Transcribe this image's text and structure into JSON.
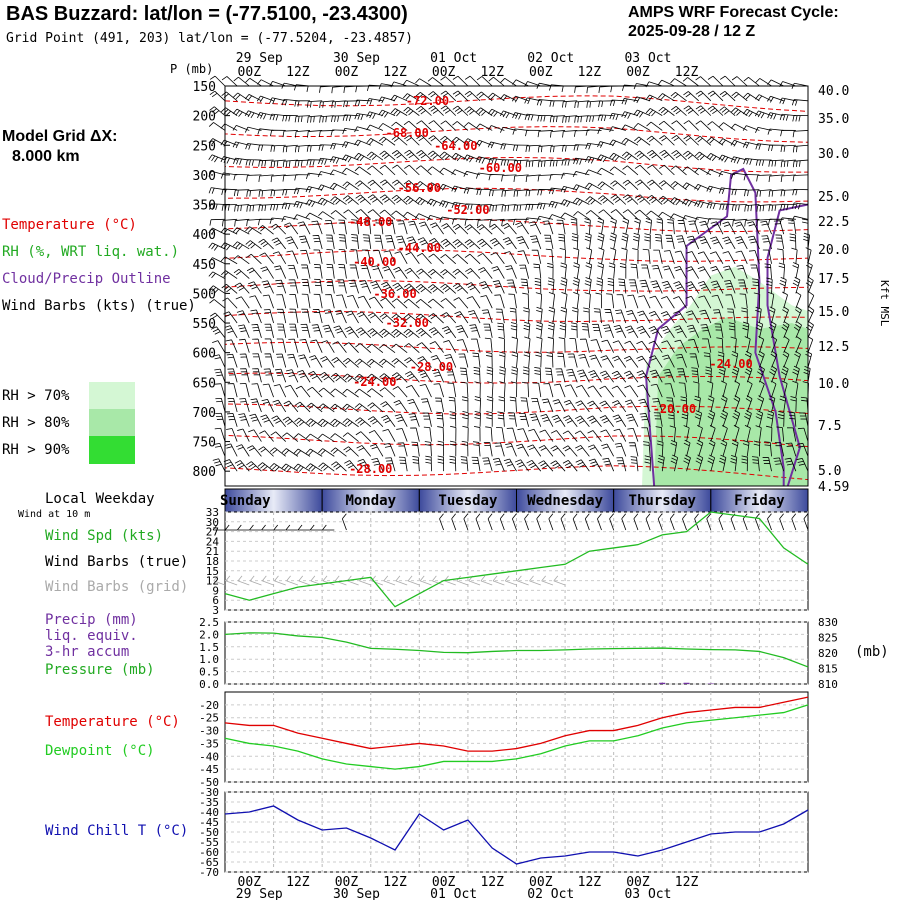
{
  "header": {
    "title": "BAS Buzzard:  lat/lon = (-77.5100, -23.4300)",
    "subtitle": "Grid Point (491, 203) lat/lon = (-77.5204, -23.4857)",
    "cycle_line1": "AMPS WRF Forecast Cycle:",
    "cycle_line2": "2025-09-28 / 12  Z"
  },
  "model_grid": {
    "label": "Model Grid ΔX:",
    "value": "8.000 km"
  },
  "time_axis": {
    "ticks": [
      "00Z",
      "12Z",
      "00Z",
      "12Z",
      "00Z",
      "12Z",
      "00Z",
      "12Z",
      "00Z",
      "12Z"
    ],
    "dates_top": [
      "29 Sep",
      "30 Sep",
      "01 Oct",
      "02 Oct",
      "03 Oct"
    ],
    "dates_bottom": [
      "29 Sep",
      "30 Sep",
      "01 Oct",
      "02 Oct",
      "03 Oct"
    ]
  },
  "colors": {
    "temperature": "#e00000",
    "rh": "#22bb22",
    "cloud_outline": "#7030a0",
    "wind": "#000000",
    "wind_grid": "#aaaaaa",
    "pressure": "#22bb22",
    "dewpoint": "#22cc22",
    "wind_chill": "#1010b0",
    "weekday_bar": "#4a5aa8",
    "rh70": "#d4f7d4",
    "rh80": "#a8e8a8",
    "rh90": "#33dd33"
  },
  "sounding": {
    "pressure_unit": "P (mb)",
    "pressure_levels": [
      "150",
      "200",
      "250",
      "300",
      "350",
      "400",
      "450",
      "500",
      "550",
      "600",
      "650",
      "700",
      "750",
      "800"
    ],
    "height_labels": [
      "40.0",
      "35.0",
      "30.0",
      "25.0",
      "22.5",
      "20.0",
      "17.5",
      "15.0",
      "12.5",
      "10.0",
      "7.5",
      "5.0",
      "4.59"
    ],
    "height_unit": "Kft MSL",
    "legend": [
      {
        "text": "Temperature (°C)",
        "color": "#e00000"
      },
      {
        "text": "RH (%, WRT liq. wat.)",
        "color": "#22aa22"
      },
      {
        "text": "Cloud/Precip Outline",
        "color": "#7030a0"
      },
      {
        "text": "Wind Barbs (kts) (true)",
        "color": "#000000"
      }
    ],
    "rh_legend": [
      {
        "text": "RH > 70%",
        "color": "#d4f7d4"
      },
      {
        "text": "RH > 80%",
        "color": "#a8e8a8"
      },
      {
        "text": "RH > 90%",
        "color": "#33dd33"
      }
    ],
    "isotherm_labels": [
      "-72.00",
      "-68.00",
      "-64.00",
      "-60.00",
      "-56.00",
      "-52.00",
      "-48.00",
      "-44.00",
      "-40.00",
      "-36.00",
      "-32.00",
      "-28.00",
      "-24.00",
      "-24.00",
      "-20.00",
      "-28.00"
    ]
  },
  "weekday": {
    "label": "Local Weekday",
    "days": [
      "Sunday",
      "Monday",
      "Tuesday",
      "Wednesday",
      "Thursday",
      "Friday"
    ]
  },
  "panels": {
    "wind": {
      "subtitle": "Wind at 10 m",
      "legend": [
        {
          "text": "Wind Spd (kts)",
          "color": "#22aa22"
        },
        {
          "text": "Wind Barbs (true)",
          "color": "#000000"
        },
        {
          "text": "Wind Barbs (grid)",
          "color": "#aaaaaa"
        }
      ],
      "yticks": [
        "33",
        "30",
        "27",
        "24",
        "21",
        "18",
        "15",
        "12",
        "9",
        "6",
        "3"
      ]
    },
    "precip": {
      "legend": [
        {
          "text": "Precip (mm)",
          "color": "#7030a0"
        },
        {
          "text": "liq. equiv.",
          "color": "#7030a0"
        },
        {
          "text": "3-hr accum",
          "color": "#7030a0"
        },
        {
          "text": "Pressure (mb)",
          "color": "#22aa22"
        }
      ],
      "yticks_left": [
        "2.5",
        "2.0",
        "1.5",
        "1.0",
        "0.5",
        "0.0"
      ],
      "yticks_right": [
        "830",
        "825",
        "820",
        "815",
        "810"
      ],
      "unit_right": "(mb)"
    },
    "temp": {
      "legend": [
        {
          "text": "Temperature (°C)",
          "color": "#e00000"
        },
        {
          "text": "Dewpoint (°C)",
          "color": "#22cc22"
        }
      ],
      "yticks": [
        "-20",
        "-25",
        "-30",
        "-35",
        "-40",
        "-45",
        "-50"
      ]
    },
    "chill": {
      "legend": [
        {
          "text": "Wind Chill T (°C)",
          "color": "#1010b0"
        }
      ],
      "yticks": [
        "-30",
        "-35",
        "-40",
        "-45",
        "-50",
        "-55",
        "-60",
        "-65",
        "-70"
      ]
    }
  },
  "chart_data": [
    {
      "type": "line",
      "name": "surface wind speed",
      "units": "kts",
      "x_hours": [
        0,
        6,
        12,
        18,
        24,
        30,
        36,
        42,
        48,
        54,
        60,
        66,
        72,
        78,
        84,
        90,
        96,
        102,
        108,
        114,
        120,
        126,
        132,
        138,
        144
      ],
      "series": [
        {
          "name": "Wind Spd (kts)",
          "values": [
            8,
            6,
            8,
            10,
            11,
            12,
            13,
            4,
            8,
            12,
            13,
            14,
            15,
            16,
            17,
            21,
            22,
            23,
            26,
            27,
            33,
            32,
            31,
            22,
            17
          ]
        }
      ],
      "ylim": [
        3,
        33
      ]
    },
    {
      "type": "line",
      "name": "pressure and precip",
      "x_hours": [
        0,
        6,
        12,
        18,
        24,
        30,
        36,
        42,
        48,
        54,
        60,
        66,
        72,
        78,
        84,
        90,
        96,
        102,
        108,
        114,
        120,
        126,
        132,
        138,
        144
      ],
      "series": [
        {
          "name": "Pressure (mb)",
          "values": [
            826,
            826.5,
            826.4,
            825.5,
            825,
            823.5,
            821.5,
            821.2,
            820.8,
            820.2,
            820.1,
            820.5,
            820.8,
            820.8,
            821.0,
            821.3,
            821.4,
            821.5,
            821.6,
            821.3,
            821.1,
            821.0,
            820.5,
            818.5,
            815.5
          ]
        },
        {
          "name": "Precip (mm)",
          "values": [
            0,
            0,
            0,
            0,
            0,
            0,
            0,
            0,
            0,
            0,
            0,
            0,
            0,
            0,
            0,
            0,
            0,
            0,
            0.05,
            0.05,
            0.02,
            0,
            0,
            0,
            0
          ]
        }
      ],
      "ylim_precip": [
        0,
        2.5
      ],
      "ylim_pressure": [
        810,
        830
      ]
    },
    {
      "type": "line",
      "name": "temperature and dewpoint",
      "units": "°C",
      "x_hours": [
        0,
        6,
        12,
        18,
        24,
        30,
        36,
        42,
        48,
        54,
        60,
        66,
        72,
        78,
        84,
        90,
        96,
        102,
        108,
        114,
        120,
        126,
        132,
        138,
        144
      ],
      "series": [
        {
          "name": "Temperature (°C)",
          "values": [
            -27,
            -28,
            -28,
            -31,
            -33,
            -35,
            -37,
            -36,
            -35,
            -36,
            -38,
            -38,
            -37,
            -35,
            -32,
            -30,
            -30,
            -28,
            -25,
            -23,
            -22,
            -21,
            -21,
            -19,
            -17
          ]
        },
        {
          "name": "Dewpoint (°C)",
          "values": [
            -33,
            -35,
            -36,
            -38,
            -41,
            -43,
            -44,
            -45,
            -44,
            -42,
            -42,
            -42,
            -41,
            -39,
            -36,
            -34,
            -34,
            -32,
            -29,
            -27,
            -26,
            -25,
            -24,
            -23,
            -20
          ]
        }
      ],
      "ylim": [
        -50,
        -15
      ]
    },
    {
      "type": "line",
      "name": "wind chill",
      "units": "°C",
      "x_hours": [
        0,
        6,
        12,
        18,
        24,
        30,
        36,
        42,
        48,
        54,
        60,
        66,
        72,
        78,
        84,
        90,
        96,
        102,
        108,
        114,
        120,
        126,
        132,
        138,
        144
      ],
      "series": [
        {
          "name": "Wind Chill T (°C)",
          "values": [
            -41,
            -40,
            -37,
            -44,
            -49,
            -48,
            -53,
            -59,
            -41,
            -49,
            -44,
            -58,
            -66,
            -63,
            -62,
            -60,
            -60,
            -62,
            -59,
            -55,
            -51,
            -50,
            -50,
            -46,
            -39
          ]
        }
      ],
      "ylim": [
        -70,
        -30
      ]
    }
  ]
}
